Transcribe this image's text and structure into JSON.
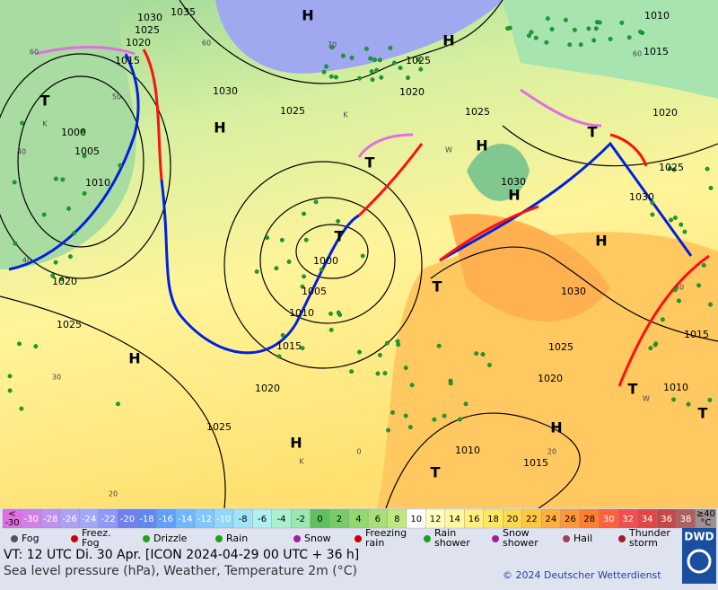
{
  "map": {
    "isobar_labels": [
      "1030",
      "1035",
      "1025",
      "1020",
      "1015",
      "1010",
      "1015",
      "1025",
      "1020",
      "1030",
      "1025",
      "1025",
      "1020",
      "1000",
      "1005",
      "1010",
      "1030",
      "1030",
      "1025",
      "1000",
      "1005",
      "1010",
      "1015",
      "1020",
      "1020",
      "1025",
      "1025",
      "1030",
      "1025",
      "1015",
      "1020",
      "1010",
      "1010",
      "1015"
    ],
    "centers": [
      "H",
      "H",
      "H",
      "H",
      "H",
      "H",
      "H",
      "H",
      "H",
      "T",
      "T",
      "T",
      "T",
      "T",
      "T",
      "T",
      "T"
    ],
    "minor_labels": [
      "60",
      "60",
      "70",
      "50",
      "40",
      "40",
      "30",
      "20",
      "0",
      "20",
      "40",
      "60",
      "K",
      "K",
      "K",
      "W",
      "W"
    ]
  },
  "scale": {
    "cells": [
      {
        "top": "<",
        "bottom": "-30"
      },
      "-30",
      "-28",
      "-26",
      "-24",
      "-22",
      "-20",
      "-18",
      "-16",
      "-14",
      "-12",
      "-10",
      "-8",
      "-6",
      "-4",
      "-2",
      "0",
      "2",
      "4",
      "6",
      "8",
      "10",
      "12",
      "14",
      "16",
      "18",
      "20",
      "22",
      "24",
      "26",
      "28",
      "30",
      "32",
      "34",
      "36",
      "38",
      {
        "top": "≥40",
        "bottom": "°C"
      }
    ],
    "colors": [
      "#e070e0",
      "#d080e8",
      "#c090f0",
      "#b0a0f4",
      "#a0a8f8",
      "#9098f8",
      "#7080f0",
      "#6088f0",
      "#60a0f8",
      "#70b8fc",
      "#80c8fc",
      "#90d8fc",
      "#a0e4f8",
      "#b0f0f0",
      "#a8f0d0",
      "#98e8b0",
      "#60c060",
      "#78cc68",
      "#90d870",
      "#a8e078",
      "#c0e880",
      "#ffffff",
      "#ffffc0",
      "#fff8a0",
      "#fff080",
      "#ffe860",
      "#ffd850",
      "#ffc840",
      "#ffb040",
      "#ff9838",
      "#ff8030",
      "#ff6040",
      "#f05050",
      "#e04848",
      "#c84848",
      "#b06060",
      "#a09090"
    ]
  },
  "legend": [
    "Fog",
    "Freez.\nFog",
    "Drizzle",
    "Rain",
    "Snow",
    "Freezing\nrain",
    "Rain\nshower",
    "Snow\nshower",
    "Hail",
    "Thunder\nstorm"
  ],
  "footer": {
    "line1": "VT: 12 UTC Di.  30 Apr. [ICON 2024-04-29  00 UTC + 36 h]",
    "line2": "Sea level pressure (hPa), Weather, Temperature 2m (°C)",
    "copyright": "© 2024 Deutscher Wetterdienst",
    "logo": "DWD"
  }
}
